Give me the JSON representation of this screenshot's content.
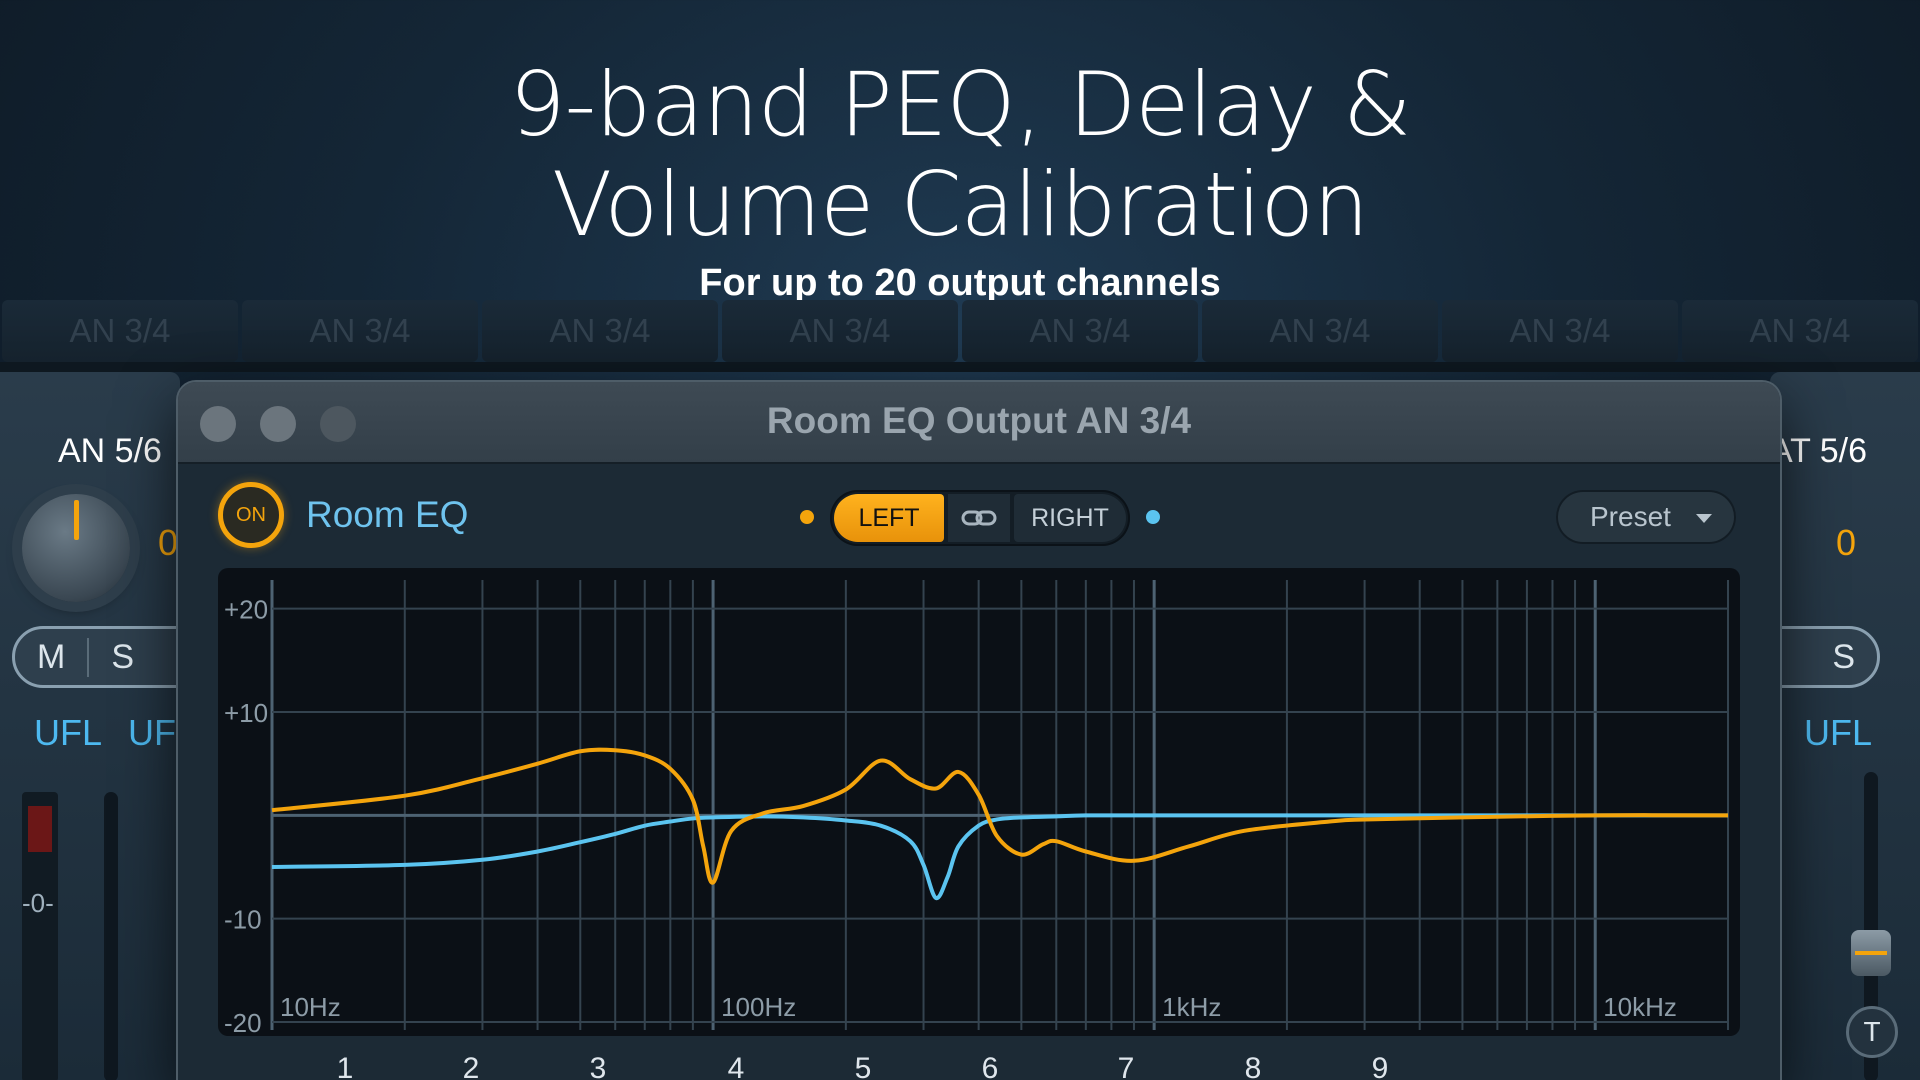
{
  "headline": {
    "line1": "9-band PEQ, Delay &",
    "line2": "Volume Calibration",
    "sub": "For up to 20 output channels"
  },
  "background_channels": [
    "AN 3/4",
    "AN 3/4",
    "AN 3/4",
    "AN 3/4",
    "AN 3/4",
    "AN 3/4",
    "AN 3/4",
    "AN 3/4"
  ],
  "left_strip": {
    "name": "AN 5/6",
    "value": "0",
    "mute": "M",
    "solo": "S",
    "ufl1": "UFL",
    "ufl2": "UF",
    "meter_zero": "-0-"
  },
  "right_strip": {
    "name": "AT 5/6",
    "value": "0",
    "solo": "S",
    "ufl": "UFL",
    "t_button": "T"
  },
  "window": {
    "title": "Room EQ Output AN 3/4",
    "on_label": "ON",
    "plugin_name": "Room EQ",
    "left_label": "LEFT",
    "link_icon": "link-icon",
    "right_label": "RIGHT",
    "preset_label": "Preset",
    "bands": [
      "1",
      "2",
      "3",
      "4",
      "5",
      "6",
      "7",
      "8",
      "9"
    ]
  },
  "colors": {
    "left": "#f4a40c",
    "right": "#5bc4f0",
    "accent": "#f4a40c"
  },
  "chart_data": {
    "type": "line",
    "x_scale": "log",
    "xlim": [
      10,
      20000
    ],
    "ylim": [
      -20,
      22
    ],
    "y_ticks": [
      20,
      10,
      -10,
      -20
    ],
    "y_tick_labels": [
      "+20",
      "+10",
      "-10",
      "-20"
    ],
    "x_tick_labels": [
      {
        "x": 10,
        "label": "10Hz"
      },
      {
        "x": 100,
        "label": "100Hz"
      },
      {
        "x": 1000,
        "label": "1kHz"
      },
      {
        "x": 10000,
        "label": "10kHz"
      }
    ],
    "grid": true,
    "series": [
      {
        "color": "#f4a40c",
        "x": [
          10,
          20,
          30,
          40,
          50,
          60,
          70,
          80,
          90,
          95,
          100,
          110,
          130,
          160,
          200,
          240,
          280,
          320,
          360,
          400,
          440,
          500,
          560,
          600,
          700,
          900,
          1200,
          1600,
          2500,
          3000,
          5000,
          10000,
          20000
        ],
        "y": [
          0.5,
          1.9,
          3.6,
          5.0,
          6.2,
          6.3,
          5.8,
          4.5,
          1.5,
          -3.0,
          -6.5,
          -1.5,
          0.2,
          0.9,
          2.5,
          5.3,
          3.5,
          2.6,
          4.2,
          2.0,
          -2.0,
          -3.8,
          -2.8,
          -2.5,
          -3.5,
          -4.4,
          -3.0,
          -1.5,
          -0.6,
          -0.4,
          -0.2,
          0,
          0
        ]
      },
      {
        "color": "#5bc4f0",
        "x": [
          10,
          20,
          30,
          40,
          50,
          60,
          70,
          80,
          90,
          100,
          130,
          160,
          200,
          240,
          280,
          300,
          320,
          340,
          360,
          400,
          440,
          500,
          600,
          700,
          1000,
          2000,
          5000,
          10000,
          20000
        ],
        "y": [
          -5.0,
          -4.8,
          -4.3,
          -3.5,
          -2.6,
          -1.8,
          -1.0,
          -0.6,
          -0.3,
          -0.2,
          -0.1,
          -0.2,
          -0.5,
          -1.0,
          -2.5,
          -4.8,
          -8.0,
          -6.0,
          -3.0,
          -1.0,
          -0.4,
          -0.2,
          -0.1,
          0,
          0,
          0,
          0,
          0,
          0
        ]
      }
    ]
  }
}
